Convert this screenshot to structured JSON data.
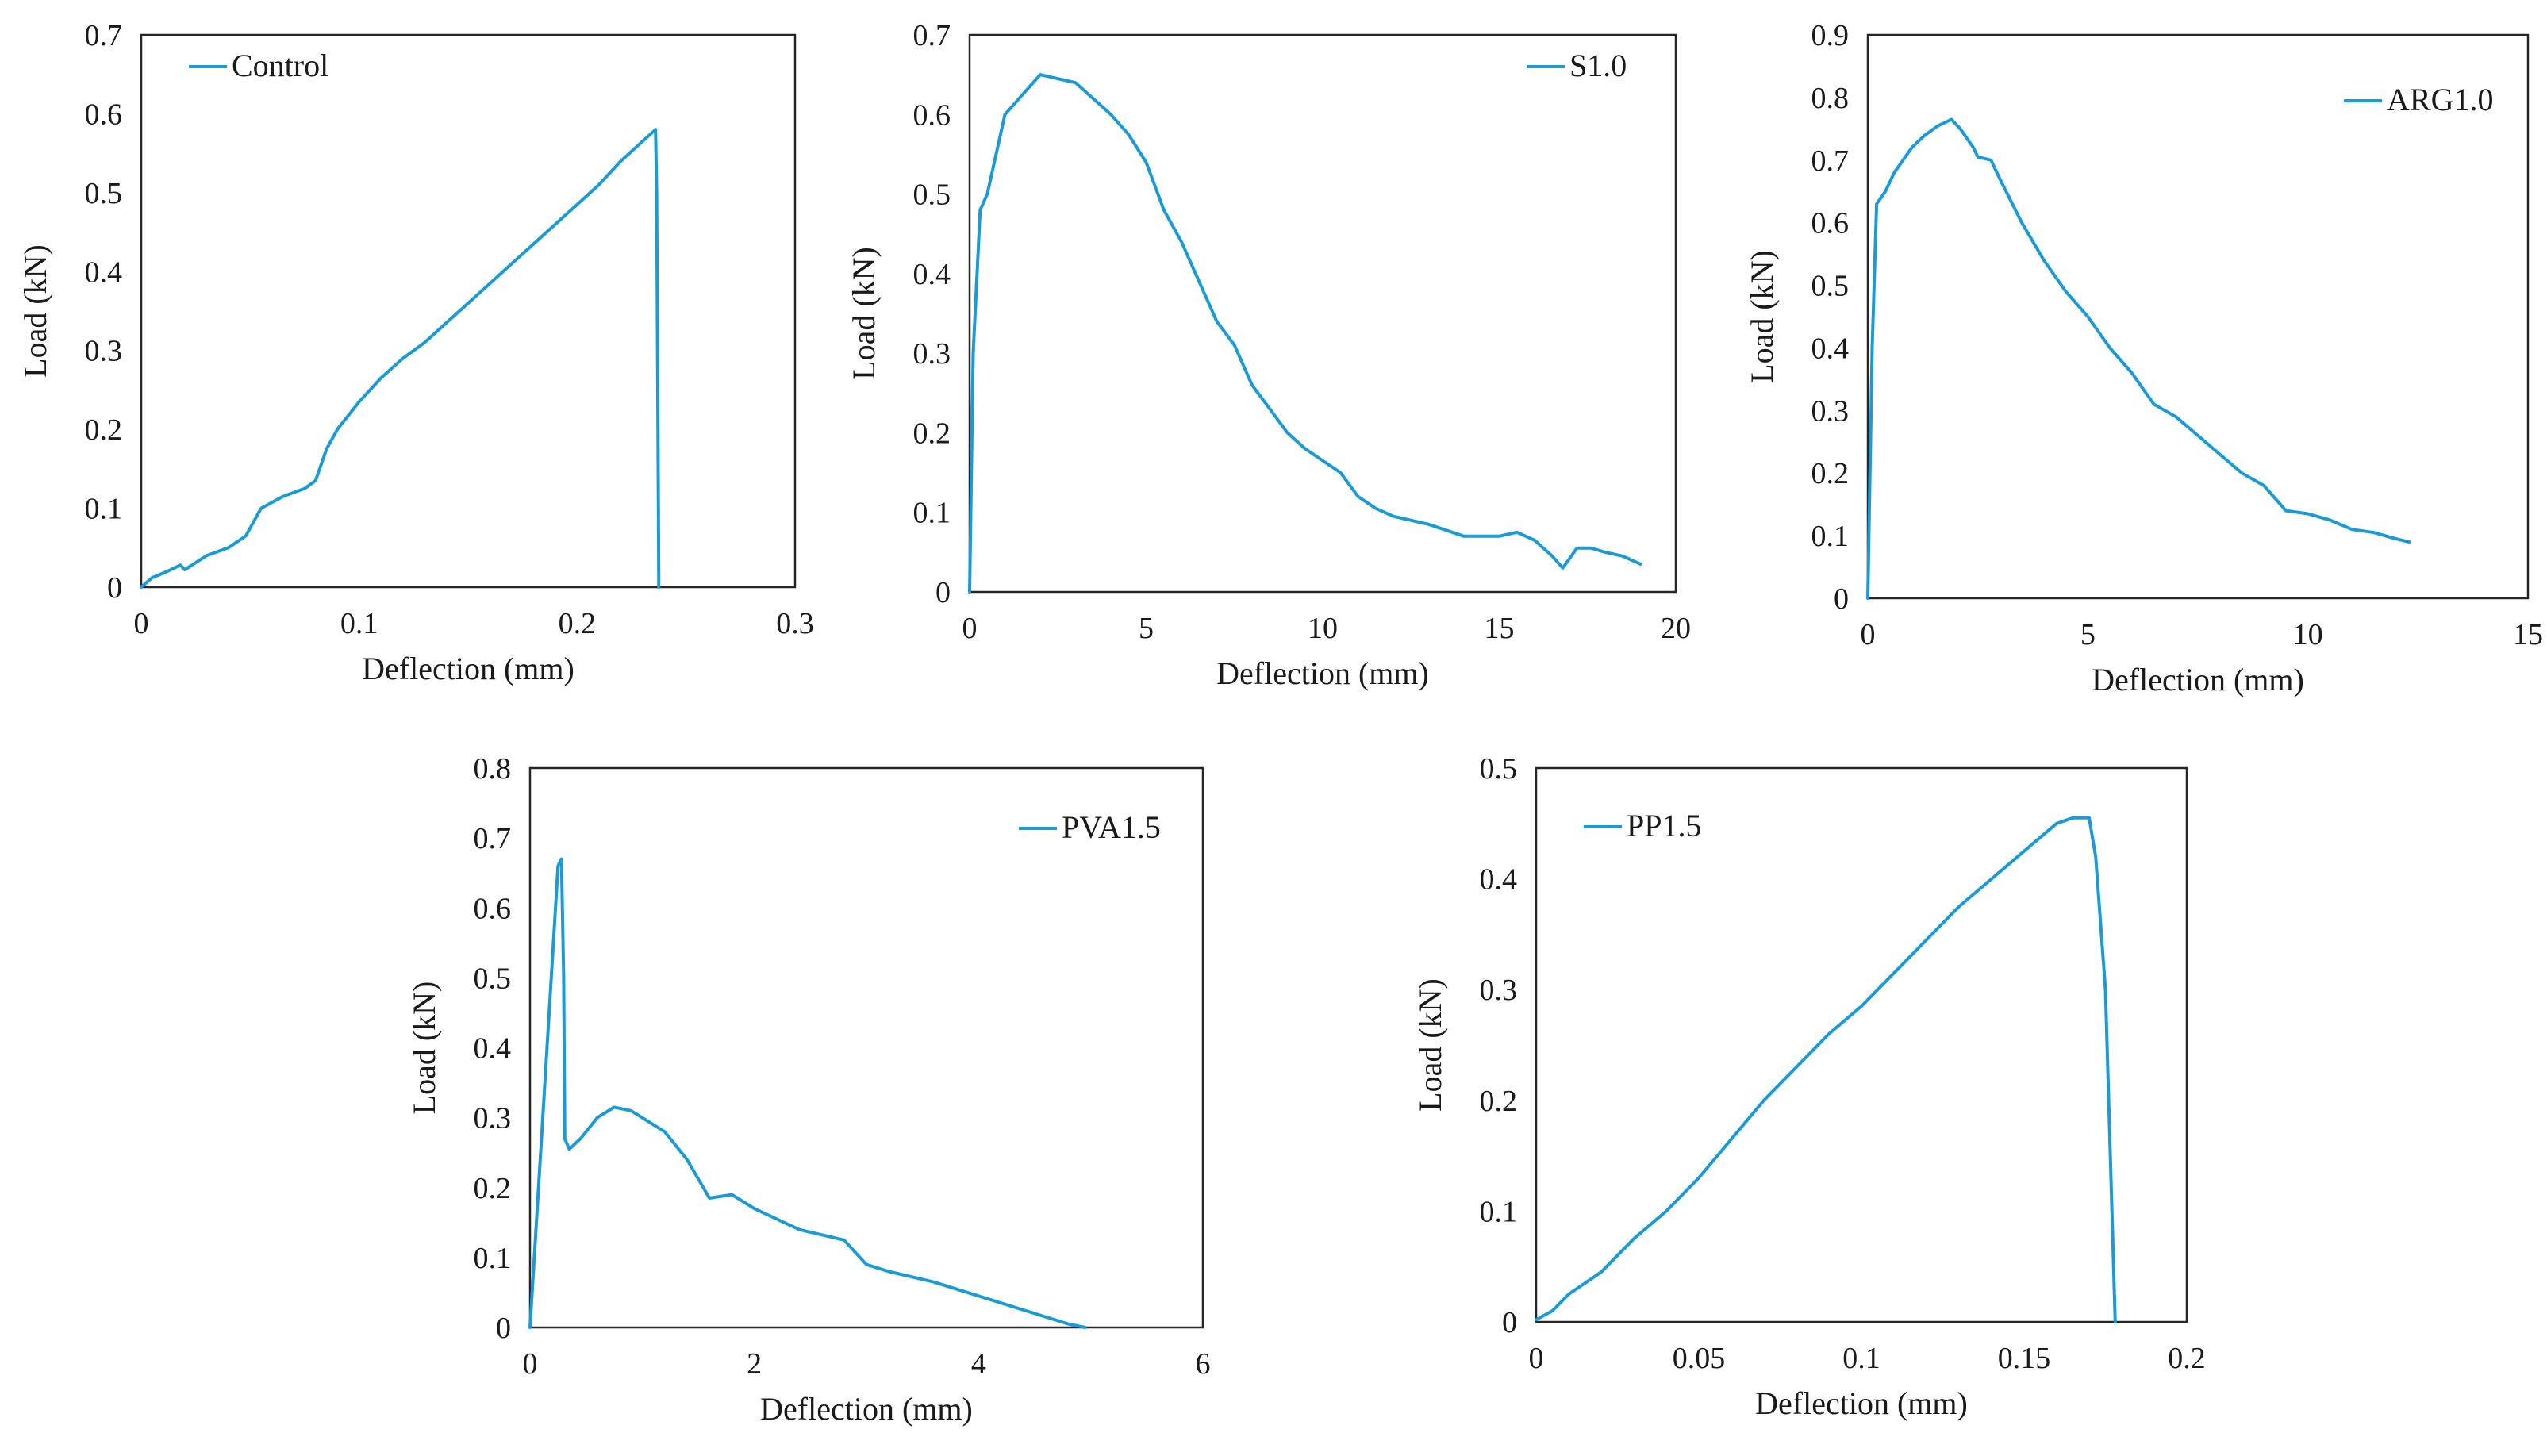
{
  "figure": {
    "description_free": true
  },
  "colors": {
    "series": "#1c9ad6",
    "frame": "#262626"
  },
  "chart_data": [
    {
      "type": "line",
      "id": "control",
      "title": "",
      "xlabel": "Deflection (mm)",
      "ylabel": "Load (kN)",
      "xlim": [
        0,
        0.3
      ],
      "ylim": [
        0,
        0.7
      ],
      "xticks": [
        0,
        0.1,
        0.2,
        0.3
      ],
      "yticks": [
        0,
        0.1,
        0.2,
        0.3,
        0.4,
        0.5,
        0.6,
        0.7
      ],
      "legend": {
        "label": "Control",
        "placement": "top-left"
      },
      "series": [
        {
          "name": "Control",
          "x": [
            0,
            0.005,
            0.012,
            0.018,
            0.02,
            0.03,
            0.04,
            0.048,
            0.055,
            0.065,
            0.075,
            0.08,
            0.085,
            0.09,
            0.1,
            0.11,
            0.12,
            0.13,
            0.14,
            0.15,
            0.16,
            0.17,
            0.18,
            0.19,
            0.2,
            0.21,
            0.22,
            0.23,
            0.236,
            0.2365,
            0.2375
          ],
          "y": [
            0,
            0.012,
            0.02,
            0.028,
            0.022,
            0.04,
            0.05,
            0.065,
            0.1,
            0.115,
            0.125,
            0.135,
            0.175,
            0.2,
            0.235,
            0.265,
            0.29,
            0.31,
            0.335,
            0.36,
            0.385,
            0.41,
            0.435,
            0.46,
            0.485,
            0.51,
            0.54,
            0.565,
            0.58,
            0.5,
            0
          ]
        }
      ]
    },
    {
      "type": "line",
      "id": "s1",
      "title": "",
      "xlabel": "Deflection (mm)",
      "ylabel": "Load (kN)",
      "xlim": [
        0,
        20
      ],
      "ylim": [
        0,
        0.7
      ],
      "xticks": [
        0,
        5,
        10,
        15,
        20
      ],
      "yticks": [
        0,
        0.1,
        0.2,
        0.3,
        0.4,
        0.5,
        0.6,
        0.7
      ],
      "legend": {
        "label": "S1.0",
        "placement": "top-right"
      },
      "series": [
        {
          "name": "S1.0",
          "x": [
            0,
            0.1,
            0.3,
            0.5,
            0.8,
            1.0,
            1.2,
            1.4,
            1.6,
            1.8,
            2.0,
            2.5,
            3.0,
            3.5,
            4.0,
            4.5,
            5.0,
            5.5,
            6.0,
            6.5,
            7.0,
            7.5,
            8.0,
            8.5,
            9.0,
            9.5,
            10.0,
            10.5,
            11.0,
            11.5,
            12.0,
            13.0,
            14.0,
            15.0,
            15.5,
            16.0,
            16.5,
            16.8,
            17.2,
            17.6,
            18.0,
            18.5,
            19.0
          ],
          "y": [
            0,
            0.3,
            0.48,
            0.5,
            0.56,
            0.6,
            0.61,
            0.62,
            0.63,
            0.64,
            0.65,
            0.645,
            0.64,
            0.62,
            0.6,
            0.575,
            0.54,
            0.48,
            0.44,
            0.39,
            0.34,
            0.31,
            0.26,
            0.23,
            0.2,
            0.18,
            0.165,
            0.15,
            0.12,
            0.105,
            0.095,
            0.085,
            0.07,
            0.07,
            0.075,
            0.065,
            0.045,
            0.03,
            0.055,
            0.055,
            0.05,
            0.045,
            0.035
          ]
        }
      ]
    },
    {
      "type": "line",
      "id": "arg1",
      "title": "",
      "xlabel": "Deflection (mm)",
      "ylabel": "Load (kN)",
      "xlim": [
        0,
        15
      ],
      "ylim": [
        0,
        0.9
      ],
      "xticks": [
        0,
        5,
        10,
        15
      ],
      "yticks": [
        0,
        0.1,
        0.2,
        0.3,
        0.4,
        0.5,
        0.6,
        0.7,
        0.8,
        0.9
      ],
      "legend": {
        "label": "ARG1.0",
        "placement": "top-right"
      },
      "series": [
        {
          "name": "ARG1.0",
          "x": [
            0,
            0.1,
            0.2,
            0.4,
            0.6,
            0.8,
            1.0,
            1.3,
            1.6,
            1.9,
            2.1,
            2.4,
            2.5,
            2.8,
            3.0,
            3.5,
            4.0,
            4.5,
            5.0,
            5.5,
            6.0,
            6.5,
            7.0,
            7.5,
            8.0,
            8.5,
            9.0,
            9.5,
            10.0,
            10.5,
            11.0,
            11.5,
            12.0,
            12.3
          ],
          "y": [
            0,
            0.4,
            0.63,
            0.65,
            0.68,
            0.7,
            0.72,
            0.74,
            0.755,
            0.765,
            0.75,
            0.72,
            0.705,
            0.7,
            0.67,
            0.6,
            0.54,
            0.49,
            0.45,
            0.4,
            0.36,
            0.31,
            0.29,
            0.26,
            0.23,
            0.2,
            0.18,
            0.14,
            0.135,
            0.125,
            0.11,
            0.105,
            0.095,
            0.09
          ]
        }
      ]
    },
    {
      "type": "line",
      "id": "pva15",
      "title": "",
      "xlabel": "Deflection (mm)",
      "ylabel": "Load (kN)",
      "xlim": [
        0,
        6
      ],
      "ylim": [
        0,
        0.8
      ],
      "xticks": [
        0,
        2,
        4,
        6
      ],
      "yticks": [
        0,
        0.1,
        0.2,
        0.3,
        0.4,
        0.5,
        0.6,
        0.7,
        0.8
      ],
      "legend": {
        "label": "PVA1.5",
        "placement": "top-right"
      },
      "series": [
        {
          "name": "PVA1.5",
          "x": [
            0,
            0.25,
            0.28,
            0.3,
            0.31,
            0.35,
            0.45,
            0.6,
            0.75,
            0.9,
            1.0,
            1.2,
            1.4,
            1.6,
            1.8,
            2.0,
            2.4,
            2.8,
            3.0,
            3.2,
            3.6,
            4.0,
            4.4,
            4.8,
            4.95
          ],
          "y": [
            0,
            0.66,
            0.67,
            0.5,
            0.27,
            0.255,
            0.27,
            0.3,
            0.315,
            0.31,
            0.3,
            0.28,
            0.24,
            0.185,
            0.19,
            0.17,
            0.14,
            0.125,
            0.09,
            0.08,
            0.065,
            0.045,
            0.025,
            0.005,
            0
          ]
        }
      ]
    },
    {
      "type": "line",
      "id": "pp15",
      "title": "",
      "xlabel": "Deflection (mm)",
      "ylabel": "Load (kN)",
      "xlim": [
        0,
        0.2
      ],
      "ylim": [
        0,
        0.5
      ],
      "xticks": [
        0,
        0.05,
        0.1,
        0.15,
        0.2
      ],
      "yticks": [
        0,
        0.1,
        0.2,
        0.3,
        0.4,
        0.5
      ],
      "legend": {
        "label": "PP1.5",
        "placement": "top-left"
      },
      "series": [
        {
          "name": "PP1.5",
          "x": [
            0,
            0.005,
            0.01,
            0.02,
            0.03,
            0.04,
            0.05,
            0.06,
            0.07,
            0.08,
            0.09,
            0.1,
            0.11,
            0.12,
            0.13,
            0.14,
            0.15,
            0.16,
            0.165,
            0.17,
            0.172,
            0.175,
            0.177,
            0.178
          ],
          "y": [
            0.002,
            0.01,
            0.025,
            0.045,
            0.075,
            0.1,
            0.13,
            0.165,
            0.2,
            0.23,
            0.26,
            0.285,
            0.315,
            0.345,
            0.375,
            0.4,
            0.425,
            0.45,
            0.455,
            0.455,
            0.42,
            0.3,
            0.1,
            0
          ]
        }
      ]
    }
  ]
}
